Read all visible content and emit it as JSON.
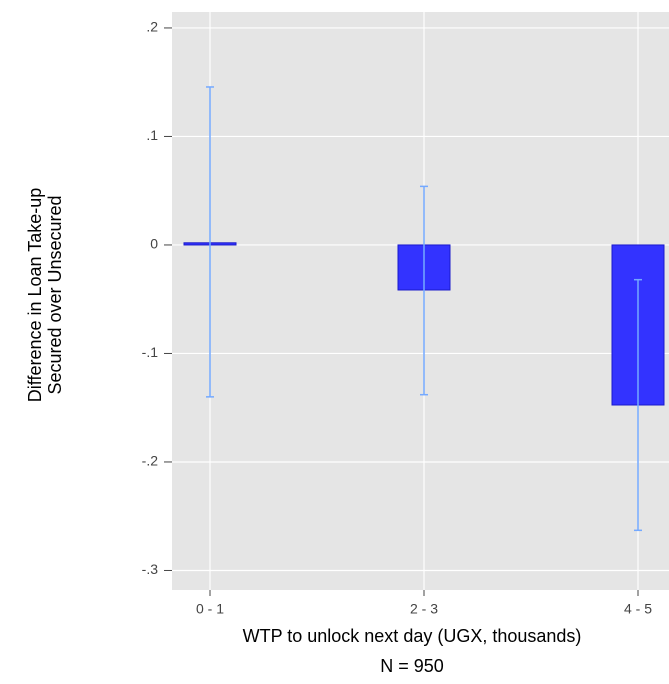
{
  "chart_data": {
    "type": "bar",
    "x_label": "WTP to unlock next day (UGX, thousands)",
    "note": "N = 950",
    "y_label": [
      "Difference in Loan Take-up",
      "Secured over Unsecured"
    ],
    "categories": [
      "0 - 1",
      "2 - 3",
      "4 - 5"
    ],
    "values": [
      0.002,
      -0.0415,
      -0.1475
    ],
    "ci_lower": [
      -0.14,
      -0.138,
      -0.263
    ],
    "ci_upper": [
      0.1456,
      0.054,
      -0.032
    ],
    "color": "#3333ff",
    "error_color": "#74a9ff",
    "ylim": [
      -0.318,
      0.2147
    ],
    "yticks": [
      {
        "value": -0.3,
        "label": "-.3"
      },
      {
        "value": -0.2,
        "label": "-.2"
      },
      {
        "value": -0.1,
        "label": "-.1"
      },
      0,
      {
        "value": 0.1,
        "label": ".1"
      },
      {
        "value": 0.2,
        "label": ".2"
      }
    ],
    "grid": true
  }
}
